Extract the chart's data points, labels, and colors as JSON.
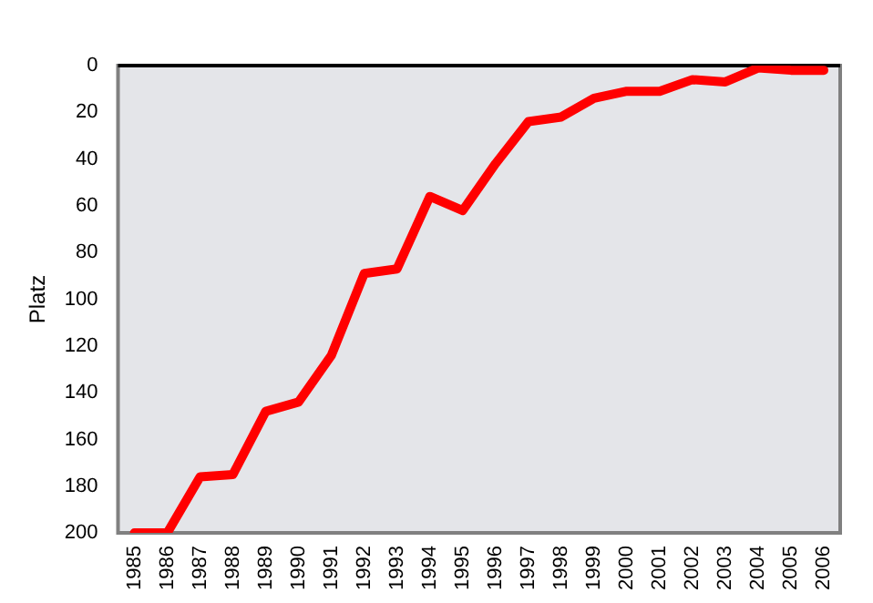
{
  "chart_data": {
    "type": "line",
    "ylabel": "Platz",
    "categories": [
      "1985",
      "1986",
      "1987",
      "1988",
      "1989",
      "1990",
      "1991",
      "1992",
      "1993",
      "1994",
      "1995",
      "1996",
      "1997",
      "1998",
      "1999",
      "2000",
      "2001",
      "2002",
      "2003",
      "2004",
      "2005",
      "2006"
    ],
    "series": [
      {
        "color": "#ff0000",
        "values": [
          200,
          200,
          176,
          175,
          148,
          144,
          124,
          89,
          87,
          56,
          62,
          42,
          24,
          22,
          14,
          11,
          11,
          6,
          7,
          1,
          2,
          2
        ]
      }
    ],
    "ylim": [
      200,
      0
    ],
    "yticks": [
      0,
      20,
      40,
      60,
      80,
      100,
      120,
      140,
      160,
      180,
      200
    ],
    "grid": false,
    "legend": false,
    "marker": "none",
    "line_style": "solid"
  }
}
